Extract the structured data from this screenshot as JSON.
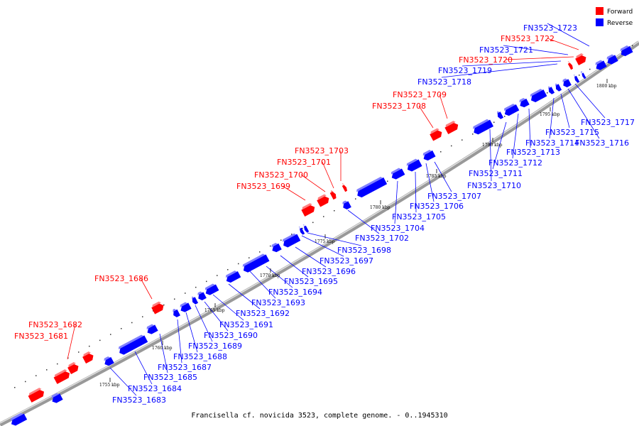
{
  "caption": "Francisella cf. novicida 3523, complete genome. - 0..1945310",
  "legend": {
    "forward": {
      "label": "Forward",
      "color": "#ff0000"
    },
    "reverse": {
      "label": "Reverse",
      "color": "#0000ff"
    }
  },
  "kbp_labels": [
    "1755 kbp",
    "1760 kbp",
    "1765 kbp",
    "1770 kbp",
    "1775 kbp",
    "1780 kbp",
    "1785 kbp",
    "1790 kbp",
    "1795 kbp",
    "1800 kbp"
  ],
  "forward_labels": [
    "FN3523_1681",
    "FN3523_1682",
    "FN3523_1686",
    "FN3523_1699",
    "FN3523_1700",
    "FN3523_1701",
    "FN3523_1703",
    "FN3523_1708",
    "FN3523_1709",
    "FN3523_1720",
    "FN3523_1722"
  ],
  "reverse_labels": [
    "FN3523_1683",
    "FN3523_1684",
    "FN3523_1685",
    "FN3523_1687",
    "FN3523_1688",
    "FN3523_1689",
    "FN3523_1690",
    "FN3523_1691",
    "FN3523_1692",
    "FN3523_1693",
    "FN3523_1694",
    "FN3523_1695",
    "FN3523_1696",
    "FN3523_1697",
    "FN3523_1698",
    "FN3523_1702",
    "FN3523_1704",
    "FN3523_1705",
    "FN3523_1706",
    "FN3523_1707",
    "FN3523_1710",
    "FN3523_1711",
    "FN3523_1712",
    "FN3523_1713",
    "FN3523_1714",
    "FN3523_1715",
    "FN3523_1716",
    "FN3523_1717",
    "FN3523_1718",
    "FN3523_1719",
    "FN3523_1721",
    "FN3523_1723"
  ]
}
